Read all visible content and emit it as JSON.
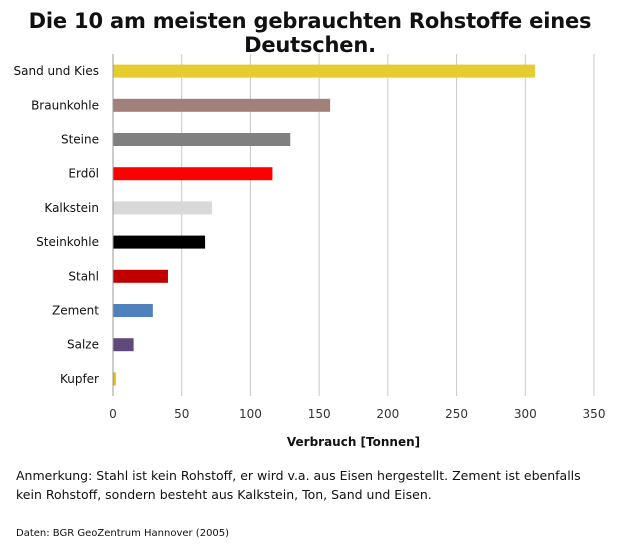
{
  "chart_data": {
    "type": "bar",
    "orientation": "horizontal",
    "title": "Die 10 am meisten gebrauchten Rohstoffe eines Deutschen.",
    "xlabel": "Verbrauch [Tonnen]",
    "ylabel": "",
    "xlim": [
      0,
      350
    ],
    "xticks": [
      "0",
      "50",
      "100",
      "150",
      "200",
      "250",
      "300",
      "350"
    ],
    "grid": "vertical",
    "categories": [
      "Sand und Kies",
      "Braunkohle",
      "Steine",
      "Erdöl",
      "Kalkstein",
      "Steinkohle",
      "Stahl",
      "Zement",
      "Salze",
      "Kupfer"
    ],
    "values": [
      307,
      158,
      129,
      116,
      72,
      67,
      40,
      29,
      15,
      2
    ],
    "colors": [
      "#e6cc2e",
      "#a08078",
      "#808080",
      "#ff0000",
      "#d9d9d9",
      "#000000",
      "#c00000",
      "#4f81bd",
      "#604a7b",
      "#e6b800"
    ]
  },
  "note": "Anmerkung: Stahl ist kein Rohstoff, er wird v.a. aus Eisen hergestellt. Zement ist ebenfalls kein Rohstoff, sondern besteht aus Kalkstein, Ton, Sand und Eisen.",
  "source": "Daten: BGR GeoZentrum Hannover (2005)"
}
